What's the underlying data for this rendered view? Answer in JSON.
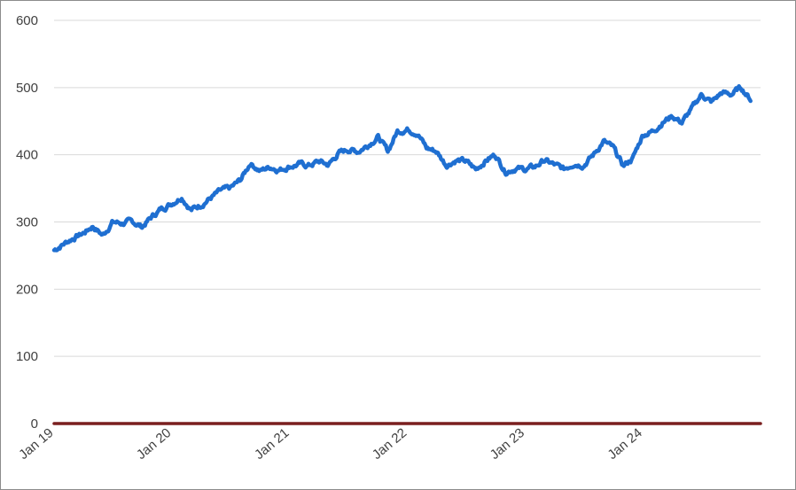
{
  "chart_data": {
    "type": "line",
    "title": "",
    "xlabel": "",
    "ylabel": "",
    "ylim": [
      0,
      600
    ],
    "yticks": [
      0,
      100,
      200,
      300,
      400,
      500,
      600
    ],
    "xlim": [
      "2019-01-01",
      "2024-12-31"
    ],
    "xticks": [
      "Jan 19",
      "Jan 20",
      "Jan 21",
      "Jan 22",
      "Jan 23",
      "Jan 24"
    ],
    "grid": "horizontal",
    "legend": "none",
    "series": [
      {
        "color": "#1f6fd1",
        "points": [
          [
            "2019-01-01",
            258
          ],
          [
            "2019-02-01",
            268
          ],
          [
            "2019-03-01",
            276
          ],
          [
            "2019-04-01",
            283
          ],
          [
            "2019-05-01",
            294
          ],
          [
            "2019-06-01",
            280
          ],
          [
            "2019-07-01",
            300
          ],
          [
            "2019-08-01",
            298
          ],
          [
            "2019-09-01",
            300
          ],
          [
            "2019-10-01",
            293
          ],
          [
            "2019-11-01",
            308
          ],
          [
            "2019-12-01",
            320
          ],
          [
            "2020-01-01",
            328
          ],
          [
            "2020-02-01",
            338
          ],
          [
            "2020-03-01",
            318
          ],
          [
            "2020-04-01",
            326
          ],
          [
            "2020-05-01",
            336
          ],
          [
            "2020-06-01",
            346
          ],
          [
            "2020-07-01",
            350
          ],
          [
            "2020-08-01",
            362
          ],
          [
            "2020-09-01",
            388
          ],
          [
            "2020-10-01",
            376
          ],
          [
            "2020-11-01",
            382
          ],
          [
            "2020-12-01",
            378
          ],
          [
            "2021-01-01",
            383
          ],
          [
            "2021-02-01",
            386
          ],
          [
            "2021-03-01",
            384
          ],
          [
            "2021-04-01",
            390
          ],
          [
            "2021-05-01",
            385
          ],
          [
            "2021-06-01",
            402
          ],
          [
            "2021-07-01",
            408
          ],
          [
            "2021-08-01",
            405
          ],
          [
            "2021-09-01",
            415
          ],
          [
            "2021-10-01",
            427
          ],
          [
            "2021-11-01",
            405
          ],
          [
            "2021-12-01",
            435
          ],
          [
            "2022-01-01",
            438
          ],
          [
            "2022-02-01",
            433
          ],
          [
            "2022-03-01",
            410
          ],
          [
            "2022-04-01",
            405
          ],
          [
            "2022-05-01",
            385
          ],
          [
            "2022-06-01",
            392
          ],
          [
            "2022-07-01",
            390
          ],
          [
            "2022-08-01",
            378
          ],
          [
            "2022-09-01",
            392
          ],
          [
            "2022-10-01",
            400
          ],
          [
            "2022-11-01",
            375
          ],
          [
            "2022-12-01",
            380
          ],
          [
            "2023-01-01",
            378
          ],
          [
            "2023-02-01",
            382
          ],
          [
            "2023-03-01",
            392
          ],
          [
            "2023-04-01",
            385
          ],
          [
            "2023-05-01",
            378
          ],
          [
            "2023-06-01",
            388
          ],
          [
            "2023-07-01",
            385
          ],
          [
            "2023-08-01",
            400
          ],
          [
            "2023-09-01",
            420
          ],
          [
            "2023-10-01",
            410
          ],
          [
            "2023-11-01",
            383
          ],
          [
            "2023-12-01",
            395
          ],
          [
            "2024-01-01",
            430
          ],
          [
            "2024-02-01",
            435
          ],
          [
            "2024-03-01",
            448
          ],
          [
            "2024-04-01",
            458
          ],
          [
            "2024-05-01",
            448
          ],
          [
            "2024-06-01",
            468
          ],
          [
            "2024-07-01",
            490
          ],
          [
            "2024-08-01",
            478
          ],
          [
            "2024-09-01",
            492
          ],
          [
            "2024-10-01",
            490
          ],
          [
            "2024-11-01",
            500
          ],
          [
            "2024-12-01",
            482
          ]
        ]
      },
      {
        "color": "#7a1f1f",
        "points": [
          [
            "2019-01-01",
            0
          ],
          [
            "2024-12-31",
            0
          ]
        ]
      }
    ]
  }
}
